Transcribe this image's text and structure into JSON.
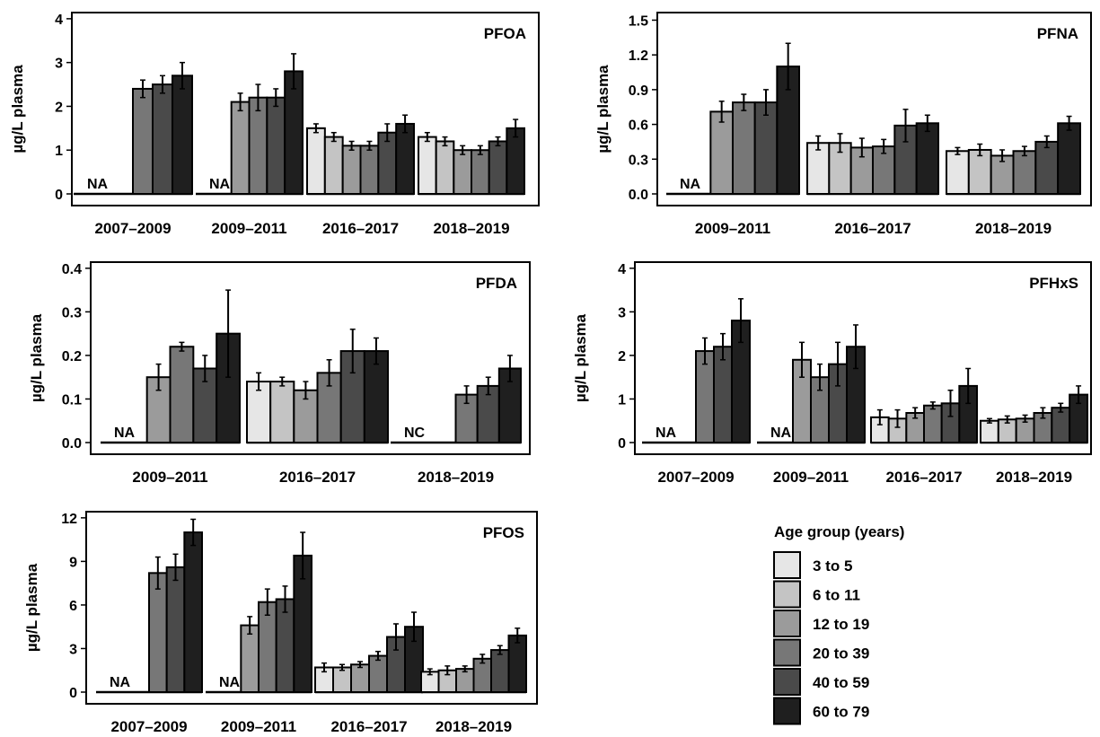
{
  "legend": {
    "title": "Age group (years)",
    "items": [
      {
        "label": "3 to 5",
        "color": "#e6e6e6"
      },
      {
        "label": "6 to 11",
        "color": "#c4c4c4"
      },
      {
        "label": "12 to 19",
        "color": "#9b9b9b"
      },
      {
        "label": "20 to 39",
        "color": "#777777"
      },
      {
        "label": "40 to 59",
        "color": "#4a4a4a"
      },
      {
        "label": "60 to 79",
        "color": "#1f1f1f"
      }
    ]
  },
  "chart_data": [
    {
      "type": "bar",
      "title": "PFOA",
      "ylabel": "µg/L plasma",
      "ylim": [
        0,
        4.1
      ],
      "yticks": [
        "0",
        "1",
        "2",
        "3",
        "4"
      ],
      "yticks_values": [
        0,
        1,
        2,
        3,
        4
      ],
      "groups": [
        {
          "label": "2007–2009",
          "note": "NA",
          "bars": [
            null,
            null,
            2.4,
            2.5,
            2.7
          ],
          "err": [
            null,
            null,
            0.2,
            0.2,
            0.3
          ]
        },
        {
          "label": "2009–2011",
          "note": "NA",
          "bars": [
            null,
            2.1,
            2.2,
            2.2,
            2.8
          ],
          "err": [
            null,
            0.2,
            0.3,
            0.2,
            0.4
          ]
        },
        {
          "label": "2016–2017",
          "bars": [
            1.5,
            1.3,
            1.1,
            1.1,
            1.4,
            1.6
          ],
          "err": [
            0.1,
            0.1,
            0.1,
            0.1,
            0.2,
            0.2
          ]
        },
        {
          "label": "2018–2019",
          "bars": [
            1.3,
            1.2,
            1.0,
            1.0,
            1.2,
            1.5
          ],
          "err": [
            0.1,
            0.1,
            0.1,
            0.1,
            0.1,
            0.2
          ]
        }
      ]
    },
    {
      "type": "bar",
      "title": "PFNA",
      "ylabel": "µg/L plasma",
      "ylim": [
        0,
        1.55
      ],
      "yticks": [
        "0.0",
        "0.3",
        "0.6",
        "0.9",
        "1.2",
        "1.5"
      ],
      "yticks_values": [
        0,
        0.3,
        0.6,
        0.9,
        1.2,
        1.5
      ],
      "groups": [
        {
          "label": "2009–2011",
          "note": "NA",
          "bars": [
            null,
            0.71,
            0.79,
            0.79,
            1.1
          ],
          "err": [
            null,
            0.09,
            0.07,
            0.11,
            0.2
          ]
        },
        {
          "label": "2016–2017",
          "bars": [
            0.44,
            0.44,
            0.4,
            0.41,
            0.59,
            0.61
          ],
          "err": [
            0.06,
            0.08,
            0.08,
            0.06,
            0.14,
            0.07
          ]
        },
        {
          "label": "2018–2019",
          "bars": [
            0.37,
            0.38,
            0.33,
            0.37,
            0.45,
            0.61
          ],
          "err": [
            0.03,
            0.05,
            0.05,
            0.04,
            0.05,
            0.06
          ]
        }
      ]
    },
    {
      "type": "bar",
      "title": "PFDA",
      "ylabel": "µg/L plasma",
      "ylim": [
        0,
        0.41
      ],
      "yticks": [
        "0.0",
        "0.1",
        "0.2",
        "0.3",
        "0.4"
      ],
      "yticks_values": [
        0,
        0.1,
        0.2,
        0.3,
        0.4
      ],
      "groups": [
        {
          "label": "2009–2011",
          "note": "NA",
          "bars": [
            null,
            0.15,
            0.22,
            0.17,
            0.25
          ],
          "err": [
            null,
            0.03,
            0.01,
            0.03,
            0.1
          ]
        },
        {
          "label": "2016–2017",
          "bars": [
            0.14,
            0.14,
            0.12,
            0.16,
            0.21,
            0.21
          ],
          "err": [
            0.02,
            0.01,
            0.02,
            0.03,
            0.05,
            0.03
          ]
        },
        {
          "label": "2018–2019",
          "note": "NC",
          "bars": [
            null,
            null,
            null,
            0.11,
            0.13,
            0.17
          ],
          "err": [
            null,
            null,
            null,
            0.02,
            0.02,
            0.03
          ]
        }
      ]
    },
    {
      "type": "bar",
      "title": "PFHxS",
      "ylabel": "µg/L plasma",
      "ylim": [
        0,
        4.1
      ],
      "yticks": [
        "0",
        "1",
        "2",
        "3",
        "4"
      ],
      "yticks_values": [
        0,
        1,
        2,
        3,
        4
      ],
      "groups": [
        {
          "label": "2007–2009",
          "note": "NA",
          "bars": [
            null,
            null,
            2.1,
            2.2,
            2.8
          ],
          "err": [
            null,
            null,
            0.3,
            0.3,
            0.5
          ]
        },
        {
          "label": "2009–2011",
          "note": "NA",
          "bars": [
            null,
            1.9,
            1.5,
            1.8,
            2.2
          ],
          "err": [
            null,
            0.4,
            0.3,
            0.5,
            0.5
          ]
        },
        {
          "label": "2016–2017",
          "bars": [
            0.58,
            0.55,
            0.68,
            0.85,
            0.9,
            1.3
          ],
          "err": [
            0.17,
            0.2,
            0.12,
            0.08,
            0.3,
            0.4
          ]
        },
        {
          "label": "2018–2019",
          "bars": [
            0.5,
            0.53,
            0.55,
            0.68,
            0.8,
            1.1
          ],
          "err": [
            0.05,
            0.08,
            0.08,
            0.12,
            0.1,
            0.2
          ]
        }
      ]
    },
    {
      "type": "bar",
      "title": "PFOS",
      "ylabel": "µg/L plasma",
      "ylim": [
        0,
        12.3
      ],
      "yticks": [
        "0",
        "3",
        "6",
        "9",
        "12"
      ],
      "yticks_values": [
        0,
        3,
        6,
        9,
        12
      ],
      "groups": [
        {
          "label": "2007–2009",
          "note": "NA",
          "bars": [
            null,
            null,
            8.2,
            8.6,
            11.0
          ],
          "err": [
            null,
            null,
            1.1,
            0.9,
            0.9
          ]
        },
        {
          "label": "2009–2011",
          "note": "NA",
          "bars": [
            null,
            4.6,
            6.2,
            6.4,
            9.4
          ],
          "err": [
            null,
            0.6,
            0.9,
            0.9,
            1.6
          ]
        },
        {
          "label": "2016–2017",
          "bars": [
            1.7,
            1.7,
            1.9,
            2.5,
            3.8,
            4.5
          ],
          "err": [
            0.3,
            0.2,
            0.2,
            0.3,
            0.9,
            1.0
          ]
        },
        {
          "label": "2018–2019",
          "bars": [
            1.4,
            1.5,
            1.6,
            2.3,
            2.9,
            3.9
          ],
          "err": [
            0.2,
            0.3,
            0.2,
            0.3,
            0.3,
            0.5
          ]
        }
      ]
    }
  ]
}
